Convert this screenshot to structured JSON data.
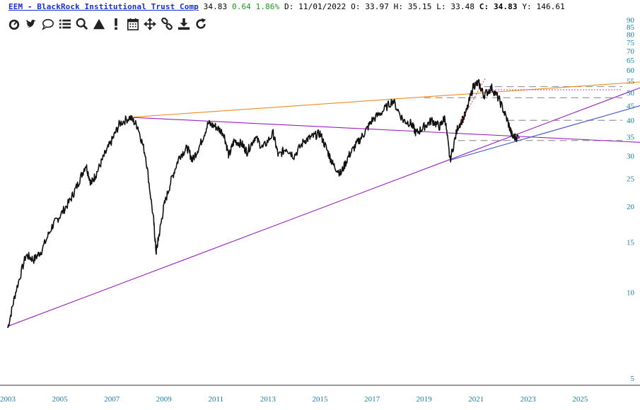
{
  "header": {
    "ticker_label": "EEM - BlackRock Institutional Trust Comp",
    "last": "34.83",
    "change": "0.64 1.86%",
    "date_label": "D:",
    "date": "11/01/2022",
    "open_label": "O:",
    "open": "33.97",
    "high_label": "H:",
    "high": "35.15",
    "low_label": "L:",
    "low": "33.48",
    "close_label": "C:",
    "close": "34.83",
    "y_label": "Y:",
    "y_value": "146.61"
  },
  "toolbar": {
    "tools": [
      {
        "name": "dashboard-icon"
      },
      {
        "name": "twitter-icon"
      },
      {
        "name": "comment-icon"
      },
      {
        "name": "list-icon"
      },
      {
        "name": "search-icon"
      },
      {
        "name": "triangle-icon"
      },
      {
        "name": "exclamation-icon"
      },
      {
        "name": "calendar-icon"
      },
      {
        "name": "move-icon"
      },
      {
        "name": "link-icon"
      },
      {
        "name": "download-icon"
      },
      {
        "name": "refresh-icon"
      }
    ]
  },
  "colors": {
    "price": "#111111",
    "axis_text": "#1a7fa8",
    "orange_line": "#f08a24",
    "purple_line": "#9b1fc0",
    "blue_line": "#3f51d6",
    "dashed_line": "#999999",
    "red_dotted": "#e04040",
    "magenta_dotted": "#cc33cc"
  },
  "chart_data": {
    "type": "line",
    "scale": "log",
    "ylim": [
      4.5,
      100
    ],
    "xlim": [
      2002.9,
      2027.5
    ],
    "y_ticks": [
      5,
      10,
      15,
      20,
      25,
      30,
      35,
      40,
      45,
      50,
      55,
      60,
      65,
      70,
      75,
      80,
      85,
      90
    ],
    "x_ticks": [
      "2003",
      "2005",
      "2007",
      "2009",
      "2011",
      "2013",
      "2015",
      "2017",
      "2019",
      "2021",
      "2023",
      "2025"
    ],
    "series": [
      {
        "values_x": [
          2003.2,
          2003.5,
          2003.9,
          2004.2,
          2004.5,
          2004.9,
          2005.2,
          2005.6,
          2005.9,
          2006.2,
          2006.4,
          2006.6,
          2006.9,
          2007.2,
          2007.5,
          2007.9,
          2008.2,
          2008.5,
          2008.8,
          2008.9,
          2009.0,
          2009.2,
          2009.5,
          2009.8,
          2010.1,
          2010.3,
          2010.6,
          2010.9,
          2011.2,
          2011.5,
          2011.7,
          2011.9,
          2012.2,
          2012.4,
          2012.7,
          2013.0,
          2013.4,
          2013.6,
          2013.9,
          2014.2,
          2014.6,
          2014.9,
          2015.2,
          2015.5,
          2015.7,
          2016.0,
          2016.3,
          2016.6,
          2016.9,
          2017.2,
          2017.6,
          2018.0,
          2018.4,
          2018.7,
          2018.9,
          2019.2,
          2019.5,
          2019.8,
          2020.0,
          2020.2,
          2020.5,
          2020.8,
          2021.1,
          2021.3,
          2021.5,
          2021.8,
          2022.1,
          2022.4,
          2022.6,
          2022.83
        ],
        "values_y": [
          7.5,
          10,
          13.5,
          13,
          14,
          17,
          18.5,
          21,
          24,
          28,
          24,
          26,
          30,
          34,
          39,
          41,
          38,
          30,
          18,
          13.8,
          15.6,
          20,
          25,
          30,
          32,
          29,
          33,
          39,
          38,
          36,
          30,
          34,
          33,
          31,
          35,
          32,
          36,
          30,
          32,
          30,
          34,
          35,
          36,
          31,
          28,
          26,
          30,
          33,
          36,
          40,
          43,
          47,
          40,
          39,
          36,
          38,
          40,
          38,
          41,
          29,
          38,
          42,
          53,
          54,
          49,
          52,
          47,
          40,
          35,
          34.83
        ]
      }
    ],
    "trendlines": [
      {
        "color": "orange",
        "from": [
          2007.9,
          41
        ],
        "to": [
          2027.5,
          54.5
        ]
      },
      {
        "color": "purple",
        "from": [
          2003.2,
          7.6
        ],
        "to": [
          2027.5,
          52
        ]
      },
      {
        "color": "purple",
        "from": [
          2007.9,
          41
        ],
        "to": [
          2027.5,
          33.5
        ]
      },
      {
        "color": "blue",
        "from": [
          2020.2,
          29
        ],
        "to": [
          2027.5,
          45
        ]
      }
    ],
    "horizontal_levels": [
      52.5,
      48,
      40,
      34
    ]
  }
}
